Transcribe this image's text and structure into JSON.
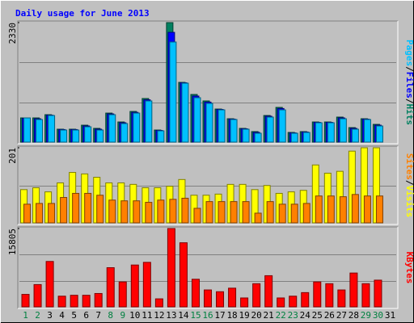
{
  "chart_data": {
    "type": "bar",
    "title": "Daily usage for June 2013",
    "categories": [
      "1",
      "2",
      "3",
      "4",
      "5",
      "6",
      "7",
      "8",
      "9",
      "10",
      "11",
      "12",
      "13",
      "14",
      "15",
      "16",
      "17",
      "18",
      "19",
      "20",
      "21",
      "22",
      "23",
      "24",
      "25",
      "26",
      "27",
      "28",
      "29",
      "30",
      "31"
    ],
    "highlight_indices": [
      0,
      1,
      7,
      8,
      14,
      15,
      21,
      22,
      28,
      29
    ],
    "highlight_color": "#008040",
    "legend_separator": "/",
    "panels": [
      {
        "ylim": [
          0,
          2330
        ],
        "series": [
          {
            "name": "Hits",
            "color": "#008060",
            "values": [
              472,
              472,
              535,
              252,
              252,
              330,
              268,
              566,
              393,
              598,
              850,
              236,
              2330,
              1165,
              929,
              803,
              645,
              456,
              268,
              205,
              519,
              677,
              189,
              205,
              393,
              393,
              488,
              283,
              456,
              346,
              null
            ]
          },
          {
            "name": "Files",
            "color": "#0000ff",
            "values": [
              460,
              455,
              525,
              245,
              245,
              315,
              252,
              550,
              378,
              580,
              825,
              228,
              2140,
              1157,
              898,
              780,
              637,
              448,
              260,
              190,
              505,
              655,
              180,
              197,
              385,
              385,
              472,
              268,
              448,
              330,
              null
            ]
          },
          {
            "name": "Pages",
            "color": "#00c0ff",
            "values": [
              472,
              441,
              519,
              236,
              236,
              299,
              236,
              535,
              362,
              566,
              803,
              220,
              1952,
              1149,
              866,
              755,
              629,
              441,
              252,
              173,
              488,
              629,
              173,
              189,
              378,
              378,
              456,
              252,
              441,
              315,
              null
            ]
          }
        ]
      },
      {
        "ylim": [
          0,
          201
        ],
        "series": [
          {
            "name": "Visits",
            "color": "#ffff00",
            "values": [
              89,
              94,
              83,
              107,
              135,
              131,
              122,
              107,
              107,
              103,
              94,
              94,
              98,
              116,
              74,
              74,
              77,
              103,
              103,
              89,
              100,
              79,
              83,
              87,
              155,
              133,
              138,
              192,
              201,
              201,
              null
            ]
          },
          {
            "name": "Sites",
            "color": "#ff8000",
            "values": [
              50,
              52,
              52,
              68,
              79,
              79,
              74,
              61,
              59,
              59,
              55,
              61,
              63,
              66,
              39,
              57,
              57,
              57,
              57,
              26,
              57,
              50,
              50,
              52,
              72,
              72,
              70,
              76,
              72,
              72,
              null
            ]
          }
        ]
      },
      {
        "ylim": [
          0,
          15805
        ],
        "series": [
          {
            "name": "KBytes",
            "color": "#ff0000",
            "values": [
              2514,
              4490,
              9160,
              2155,
              2335,
              2335,
              2694,
              7903,
              5029,
              8442,
              8980,
              1616,
              15805,
              12931,
              5568,
              3412,
              3053,
              3771,
              1796,
              4669,
              6286,
              1796,
              2155,
              2874,
              5029,
              4669,
              3412,
              6824,
              4669,
              5388,
              null
            ]
          }
        ]
      }
    ]
  }
}
